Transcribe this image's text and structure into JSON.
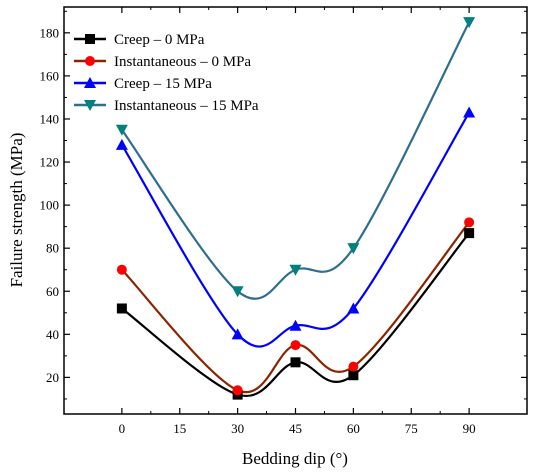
{
  "chart_data": {
    "type": "line",
    "title": "",
    "xlabel": "Bedding dip (°)",
    "ylabel": "Failure strength (MPa)",
    "x": [
      0,
      30,
      45,
      60,
      90
    ],
    "xlim": [
      -15,
      105
    ],
    "ylim": [
      3,
      192
    ],
    "xticks": [
      0,
      15,
      30,
      45,
      60,
      75,
      90
    ],
    "yticks": [
      20,
      40,
      60,
      80,
      100,
      120,
      140,
      160,
      180
    ],
    "grid": false,
    "legend_position": "top-left",
    "smooth": true,
    "series": [
      {
        "name": "Creep – 0 MPa",
        "marker_color": "#000000",
        "line_color": "#000000",
        "marker": "square",
        "values": [
          52,
          12,
          27,
          21,
          87
        ]
      },
      {
        "name": "Instantaneous – 0 MPa",
        "marker_color": "#ff0000",
        "line_color": "#8b2500",
        "marker": "circle",
        "values": [
          70,
          14,
          35,
          25,
          92
        ]
      },
      {
        "name": "Creep – 15 MPa",
        "marker_color": "#0000ff",
        "line_color": "#0000ff",
        "marker": "triangle-up",
        "values": [
          128,
          40,
          44,
          52,
          143
        ]
      },
      {
        "name": "Instantaneous – 15 MPa",
        "marker_color": "#008080",
        "line_color": "#2e6e8e",
        "marker": "triangle-down",
        "values": [
          135,
          60,
          70,
          80,
          185
        ]
      }
    ]
  }
}
